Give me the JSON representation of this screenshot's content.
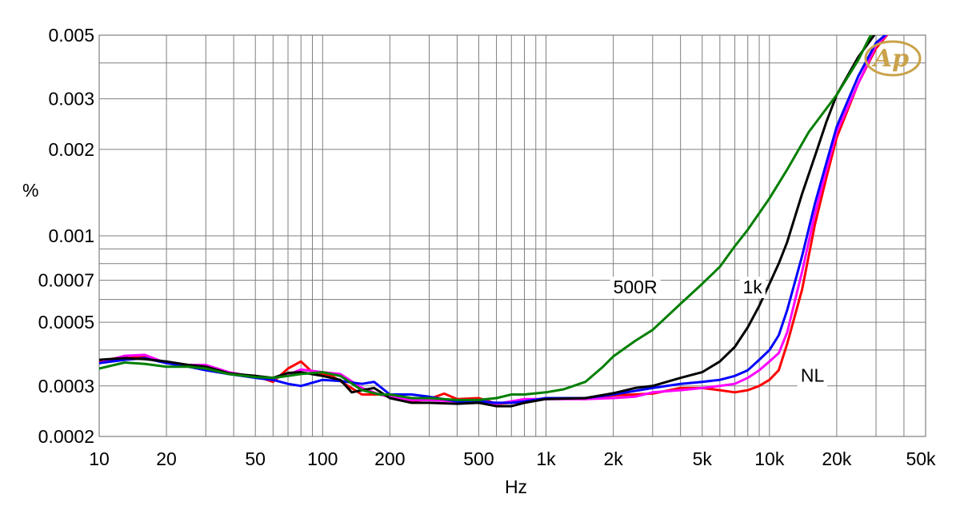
{
  "chart_data": {
    "type": "line",
    "title": "",
    "xlabel": "Hz",
    "ylabel": "%",
    "x_scale": "log",
    "y_scale": "log",
    "xlim": [
      10,
      50000
    ],
    "ylim": [
      0.0002,
      0.005
    ],
    "grid": true,
    "x_ticks": [
      {
        "v": 10,
        "label": "10"
      },
      {
        "v": 20,
        "label": "20"
      },
      {
        "v": 50,
        "label": "50"
      },
      {
        "v": 100,
        "label": "100"
      },
      {
        "v": 200,
        "label": "200"
      },
      {
        "v": 500,
        "label": "500"
      },
      {
        "v": 1000,
        "label": "1k"
      },
      {
        "v": 2000,
        "label": "2k"
      },
      {
        "v": 5000,
        "label": "5k"
      },
      {
        "v": 10000,
        "label": "10k"
      },
      {
        "v": 20000,
        "label": "20k"
      },
      {
        "v": 50000,
        "label": "50k"
      }
    ],
    "y_ticks": [
      {
        "v": 0.005,
        "label": "0.005"
      },
      {
        "v": 0.003,
        "label": "0.003"
      },
      {
        "v": 0.002,
        "label": "0.002"
      },
      {
        "v": 0.001,
        "label": "0.001"
      },
      {
        "v": 0.0007,
        "label": "0.0007"
      },
      {
        "v": 0.0005,
        "label": "0.0005"
      },
      {
        "v": 0.0003,
        "label": "0.0003"
      },
      {
        "v": 0.0002,
        "label": "0.0002"
      }
    ],
    "series": [
      {
        "color": "#ff0000",
        "points": [
          [
            10,
            0.000365
          ],
          [
            13,
            0.00038
          ],
          [
            16,
            0.00038
          ],
          [
            20,
            0.00036
          ],
          [
            25,
            0.000355
          ],
          [
            30,
            0.00035
          ],
          [
            38,
            0.00033
          ],
          [
            50,
            0.000325
          ],
          [
            60,
            0.00031
          ],
          [
            70,
            0.000345
          ],
          [
            80,
            0.000365
          ],
          [
            90,
            0.000335
          ],
          [
            110,
            0.000325
          ],
          [
            130,
            0.0003
          ],
          [
            150,
            0.00028
          ],
          [
            180,
            0.00028
          ],
          [
            200,
            0.000275
          ],
          [
            250,
            0.000265
          ],
          [
            300,
            0.00027
          ],
          [
            350,
            0.000282
          ],
          [
            400,
            0.00027
          ],
          [
            500,
            0.000272
          ],
          [
            600,
            0.00026
          ],
          [
            700,
            0.000262
          ],
          [
            800,
            0.000265
          ],
          [
            1000,
            0.000272
          ],
          [
            1500,
            0.00027
          ],
          [
            2000,
            0.000278
          ],
          [
            3000,
            0.000282
          ],
          [
            4000,
            0.000295
          ],
          [
            5000,
            0.000295
          ],
          [
            6000,
            0.00029
          ],
          [
            7000,
            0.000285
          ],
          [
            8000,
            0.00029
          ],
          [
            9000,
            0.0003
          ],
          [
            10000,
            0.000315
          ],
          [
            11000,
            0.00034
          ],
          [
            12000,
            0.00042
          ],
          [
            14000,
            0.00065
          ],
          [
            16000,
            0.0011
          ],
          [
            18000,
            0.0016
          ],
          [
            20000,
            0.0022
          ],
          [
            25000,
            0.0034
          ],
          [
            30000,
            0.0045
          ],
          [
            35000,
            0.0052
          ]
        ]
      },
      {
        "color": "#ff00ff",
        "points": [
          [
            10,
            0.00036
          ],
          [
            13,
            0.000382
          ],
          [
            16,
            0.000385
          ],
          [
            20,
            0.00036
          ],
          [
            25,
            0.000355
          ],
          [
            30,
            0.000355
          ],
          [
            38,
            0.000335
          ],
          [
            50,
            0.000322
          ],
          [
            60,
            0.000318
          ],
          [
            70,
            0.000328
          ],
          [
            80,
            0.000342
          ],
          [
            100,
            0.000335
          ],
          [
            120,
            0.00033
          ],
          [
            150,
            0.000295
          ],
          [
            180,
            0.00028
          ],
          [
            200,
            0.000275
          ],
          [
            250,
            0.000268
          ],
          [
            300,
            0.000268
          ],
          [
            400,
            0.000265
          ],
          [
            500,
            0.000268
          ],
          [
            600,
            0.00026
          ],
          [
            700,
            0.000265
          ],
          [
            800,
            0.00027
          ],
          [
            1000,
            0.00027
          ],
          [
            1500,
            0.00027
          ],
          [
            2000,
            0.000272
          ],
          [
            2500,
            0.000275
          ],
          [
            3000,
            0.000285
          ],
          [
            4000,
            0.00029
          ],
          [
            5000,
            0.000295
          ],
          [
            6000,
            0.0003
          ],
          [
            7000,
            0.000305
          ],
          [
            8000,
            0.00032
          ],
          [
            9000,
            0.00034
          ],
          [
            10000,
            0.000365
          ],
          [
            11000,
            0.00039
          ],
          [
            12000,
            0.00046
          ],
          [
            14000,
            0.00075
          ],
          [
            16000,
            0.0012
          ],
          [
            18000,
            0.0017
          ],
          [
            20000,
            0.0023
          ],
          [
            25000,
            0.0034
          ],
          [
            30000,
            0.0046
          ],
          [
            35000,
            0.0052
          ]
        ]
      },
      {
        "color": "#0000ff",
        "points": [
          [
            10,
            0.00036
          ],
          [
            13,
            0.00037
          ],
          [
            16,
            0.000375
          ],
          [
            20,
            0.00036
          ],
          [
            25,
            0.00035
          ],
          [
            30,
            0.00034
          ],
          [
            38,
            0.00033
          ],
          [
            50,
            0.00032
          ],
          [
            60,
            0.000315
          ],
          [
            70,
            0.000305
          ],
          [
            80,
            0.0003
          ],
          [
            100,
            0.000315
          ],
          [
            120,
            0.000312
          ],
          [
            150,
            0.000305
          ],
          [
            170,
            0.00031
          ],
          [
            200,
            0.00028
          ],
          [
            250,
            0.00028
          ],
          [
            300,
            0.000275
          ],
          [
            400,
            0.000265
          ],
          [
            500,
            0.000265
          ],
          [
            600,
            0.000262
          ],
          [
            700,
            0.000262
          ],
          [
            800,
            0.000265
          ],
          [
            1000,
            0.000272
          ],
          [
            1500,
            0.000272
          ],
          [
            2000,
            0.00028
          ],
          [
            3000,
            0.000295
          ],
          [
            4000,
            0.000305
          ],
          [
            5000,
            0.00031
          ],
          [
            6000,
            0.000315
          ],
          [
            7000,
            0.000325
          ],
          [
            8000,
            0.00034
          ],
          [
            9000,
            0.00037
          ],
          [
            10000,
            0.0004
          ],
          [
            11000,
            0.00045
          ],
          [
            12000,
            0.00055
          ],
          [
            14000,
            0.00085
          ],
          [
            16000,
            0.0013
          ],
          [
            18000,
            0.0018
          ],
          [
            20000,
            0.0024
          ],
          [
            25000,
            0.0036
          ],
          [
            30000,
            0.0047
          ],
          [
            35000,
            0.0052
          ]
        ]
      },
      {
        "color": "#000000",
        "points": [
          [
            10,
            0.00037
          ],
          [
            13,
            0.000375
          ],
          [
            16,
            0.000372
          ],
          [
            20,
            0.000365
          ],
          [
            25,
            0.000355
          ],
          [
            30,
            0.00035
          ],
          [
            38,
            0.000332
          ],
          [
            50,
            0.000325
          ],
          [
            60,
            0.00032
          ],
          [
            70,
            0.000333
          ],
          [
            80,
            0.000335
          ],
          [
            100,
            0.000325
          ],
          [
            120,
            0.000315
          ],
          [
            135,
            0.000285
          ],
          [
            150,
            0.00029
          ],
          [
            170,
            0.000295
          ],
          [
            200,
            0.000272
          ],
          [
            250,
            0.000262
          ],
          [
            300,
            0.000262
          ],
          [
            400,
            0.00026
          ],
          [
            500,
            0.000262
          ],
          [
            600,
            0.000255
          ],
          [
            700,
            0.000255
          ],
          [
            800,
            0.000262
          ],
          [
            1000,
            0.00027
          ],
          [
            1500,
            0.000272
          ],
          [
            2000,
            0.000283
          ],
          [
            2500,
            0.000295
          ],
          [
            3000,
            0.0003
          ],
          [
            4000,
            0.00032
          ],
          [
            5000,
            0.000335
          ],
          [
            6000,
            0.000365
          ],
          [
            7000,
            0.00041
          ],
          [
            8000,
            0.00048
          ],
          [
            9000,
            0.00057
          ],
          [
            10000,
            0.00068
          ],
          [
            11000,
            0.0008
          ],
          [
            12000,
            0.00095
          ],
          [
            14000,
            0.0014
          ],
          [
            16000,
            0.0019
          ],
          [
            18000,
            0.0025
          ],
          [
            20000,
            0.0031
          ],
          [
            25000,
            0.0042
          ],
          [
            30000,
            0.0051
          ]
        ]
      },
      {
        "color": "#007f00",
        "points": [
          [
            10,
            0.000345
          ],
          [
            13,
            0.000362
          ],
          [
            16,
            0.000358
          ],
          [
            20,
            0.00035
          ],
          [
            25,
            0.00035
          ],
          [
            30,
            0.000345
          ],
          [
            38,
            0.00033
          ],
          [
            50,
            0.000322
          ],
          [
            60,
            0.00032
          ],
          [
            70,
            0.000325
          ],
          [
            80,
            0.00033
          ],
          [
            100,
            0.000335
          ],
          [
            120,
            0.000325
          ],
          [
            150,
            0.00029
          ],
          [
            180,
            0.00028
          ],
          [
            200,
            0.00028
          ],
          [
            250,
            0.000272
          ],
          [
            300,
            0.000272
          ],
          [
            400,
            0.000268
          ],
          [
            500,
            0.000268
          ],
          [
            600,
            0.000272
          ],
          [
            700,
            0.00028
          ],
          [
            800,
            0.00028
          ],
          [
            1000,
            0.000285
          ],
          [
            1200,
            0.000292
          ],
          [
            1500,
            0.00031
          ],
          [
            1800,
            0.00035
          ],
          [
            2000,
            0.00038
          ],
          [
            2500,
            0.00043
          ],
          [
            3000,
            0.00047
          ],
          [
            4000,
            0.00058
          ],
          [
            5000,
            0.00068
          ],
          [
            6000,
            0.00078
          ],
          [
            7000,
            0.00092
          ],
          [
            8000,
            0.00105
          ],
          [
            10000,
            0.00135
          ],
          [
            12000,
            0.0017
          ],
          [
            15000,
            0.0023
          ],
          [
            20000,
            0.0031
          ],
          [
            25000,
            0.0041
          ],
          [
            28000,
            0.0049
          ],
          [
            30000,
            0.0053
          ]
        ]
      }
    ],
    "annotations": [
      {
        "text": "500R",
        "x": 2000,
        "y": 0.00063
      },
      {
        "text": "1k",
        "x": 7600,
        "y": 0.00063
      },
      {
        "text": "NL",
        "x": 13800,
        "y": 0.00031
      }
    ],
    "logo": "Ap"
  }
}
